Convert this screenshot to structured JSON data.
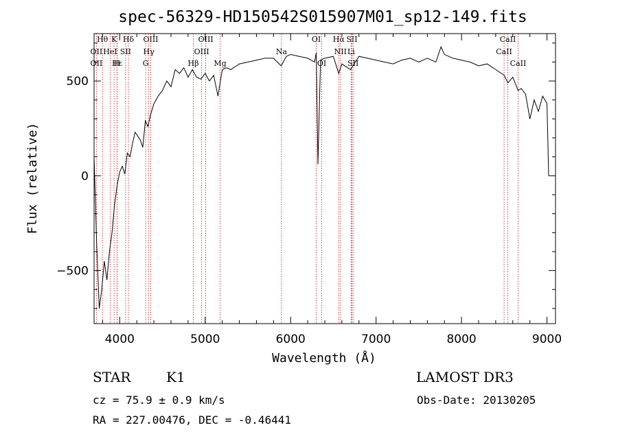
{
  "chart_data": {
    "type": "line",
    "title": "spec-56329-HD150542S015907M01_sp12-149.fits",
    "xlabel": "Wavelength (Å)",
    "ylabel": "Flux (relative)",
    "xlim": [
      3700,
      9100
    ],
    "ylim": [
      -780,
      750
    ],
    "xticks": [
      4000,
      5000,
      6000,
      7000,
      8000,
      9000
    ],
    "xtick_labels": [
      "4000",
      "5000",
      "6000",
      "7000",
      "8000",
      "9000"
    ],
    "yticks": [
      -500,
      0,
      500
    ],
    "ytick_labels": [
      "−500",
      "0",
      "500"
    ],
    "series": [
      {
        "name": "spectrum",
        "x": [
          3700,
          3730,
          3760,
          3790,
          3820,
          3850,
          3880,
          3910,
          3940,
          3970,
          4000,
          4030,
          4060,
          4090,
          4120,
          4150,
          4180,
          4210,
          4240,
          4270,
          4300,
          4330,
          4360,
          4400,
          4450,
          4500,
          4550,
          4600,
          4650,
          4700,
          4750,
          4800,
          4850,
          4900,
          4950,
          5000,
          5050,
          5100,
          5150,
          5200,
          5250,
          5300,
          5400,
          5500,
          5600,
          5700,
          5800,
          5890,
          5950,
          6000,
          6100,
          6200,
          6280,
          6300,
          6320,
          6350,
          6400,
          6500,
          6563,
          6600,
          6700,
          6800,
          6900,
          7000,
          7100,
          7200,
          7300,
          7400,
          7500,
          7600,
          7700,
          7760,
          7800,
          7900,
          8000,
          8100,
          8200,
          8300,
          8400,
          8500,
          8542,
          8600,
          8662,
          8700,
          8750,
          8800,
          8850,
          8900,
          8950,
          9000,
          9020
        ],
        "y": [
          100,
          -350,
          -700,
          -600,
          -450,
          -550,
          -400,
          -300,
          -150,
          -50,
          20,
          50,
          10,
          120,
          100,
          170,
          230,
          210,
          190,
          150,
          290,
          260,
          320,
          380,
          420,
          450,
          500,
          470,
          560,
          540,
          570,
          520,
          560,
          520,
          510,
          540,
          500,
          530,
          420,
          560,
          570,
          560,
          590,
          600,
          610,
          620,
          620,
          580,
          630,
          640,
          630,
          620,
          600,
          650,
          60,
          610,
          620,
          630,
          540,
          590,
          560,
          630,
          620,
          610,
          600,
          590,
          610,
          620,
          600,
          620,
          600,
          680,
          640,
          620,
          610,
          600,
          580,
          590,
          560,
          530,
          490,
          520,
          450,
          460,
          430,
          300,
          400,
          340,
          420,
          380,
          0
        ]
      }
    ],
    "line_markers": [
      {
        "label": "Hθ",
        "wave": 3798,
        "row": 0
      },
      {
        "label": "K",
        "wave": 3934,
        "row": 0
      },
      {
        "label": "Hδ",
        "wave": 4102,
        "row": 0
      },
      {
        "label": "OIII",
        "wave": 4363,
        "row": 0
      },
      {
        "label": "OIII",
        "wave": 5007,
        "row": 0
      },
      {
        "label": "OI",
        "wave": 6300,
        "row": 0
      },
      {
        "label": "Hα",
        "wave": 6563,
        "row": 0
      },
      {
        "label": "SII",
        "wave": 6717,
        "row": 0
      },
      {
        "label": "CaII",
        "wave": 8542,
        "row": 0
      },
      {
        "label": "OII",
        "wave": 3727,
        "row": 1
      },
      {
        "label": "HeI",
        "wave": 3889,
        "row": 1
      },
      {
        "label": "SII",
        "wave": 4069,
        "row": 1
      },
      {
        "label": "Hγ",
        "wave": 4340,
        "row": 1
      },
      {
        "label": "OIII",
        "wave": 4959,
        "row": 1
      },
      {
        "label": "Na",
        "wave": 5893,
        "row": 1
      },
      {
        "label": "NII",
        "wave": 6583,
        "row": 1
      },
      {
        "label": "Li",
        "wave": 6708,
        "row": 1
      },
      {
        "label": "CaII",
        "wave": 8498,
        "row": 1
      },
      {
        "label": "OII",
        "wave": 3727,
        "row": 2
      },
      {
        "label": "Hε",
        "wave": 3970,
        "row": 2
      },
      {
        "label": "H",
        "wave": 3969,
        "row": 2
      },
      {
        "label": "G",
        "wave": 4304,
        "row": 2
      },
      {
        "label": "Hβ",
        "wave": 4861,
        "row": 2
      },
      {
        "label": "Mg",
        "wave": 5175,
        "row": 2
      },
      {
        "label": "OI",
        "wave": 6364,
        "row": 2
      },
      {
        "label": "SII",
        "wave": 6731,
        "row": 2
      },
      {
        "label": "CaII",
        "wave": 8662,
        "row": 2
      }
    ]
  },
  "info": {
    "class": "STAR",
    "subclass": "K1",
    "survey": "LAMOST DR3",
    "cz": "cz = 75.9 ± 0.9 km/s",
    "obs_date": "Obs-Date: 20130205",
    "radec": "RA = 227.00476, DEC =  -0.46441"
  }
}
